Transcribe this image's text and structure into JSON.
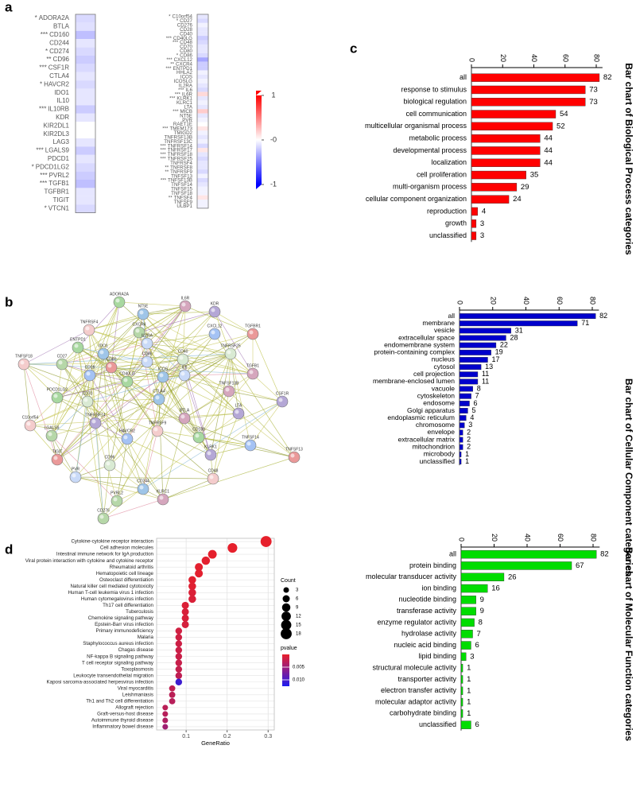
{
  "panel_labels": [
    "a",
    "b",
    "c",
    "d"
  ],
  "chart_data": [
    {
      "type": "heatmap",
      "columns": [
        {
          "genes": [
            "ADORA2A",
            "BTLA",
            "CD160",
            "CD244",
            "CD274",
            "CD96",
            "CSF1R",
            "CTLA4",
            "HAVCR2",
            "IDO1",
            "IL10",
            "IL10RB",
            "KDR",
            "KIR2DL1",
            "KIR2DL3",
            "LAG3",
            "LGALS9",
            "PDCD1",
            "PDCD1LG2",
            "PVRL2",
            "TGFB1",
            "TGFBR1",
            "TIGIT",
            "VTCN1"
          ],
          "stars": [
            "*",
            null,
            "***",
            null,
            "*",
            "**",
            "***",
            null,
            "*",
            null,
            null,
            "***",
            null,
            null,
            null,
            null,
            "***",
            null,
            "*",
            "***",
            "***",
            null,
            null,
            "*"
          ],
          "values": [
            -0.15,
            -0.12,
            -0.25,
            -0.1,
            -0.15,
            -0.2,
            -0.15,
            -0.1,
            -0.15,
            -0.1,
            -0.1,
            -0.2,
            -0.1,
            0,
            0,
            -0.1,
            -0.2,
            -0.1,
            -0.15,
            -0.2,
            -0.25,
            -0.1,
            -0.1,
            -0.15
          ]
        },
        {
          "genes": [
            "C10orf54",
            "CD27",
            "CD276",
            "CD28",
            "CD40",
            "CD40LG",
            "CD48",
            "CD70",
            "CD80",
            "CD86",
            "CXCL12",
            "CXCR4",
            "ENTPD1",
            "HHLA2",
            "ICOS",
            "ICOSLG",
            "IL2RA",
            "IL6",
            "IL6R",
            "KLRK1",
            "KLRC1",
            "LTA",
            "MICB",
            "NT5E",
            "PVR",
            "RAET1E",
            "TMEM173",
            "TMIGD2",
            "TNFRSF13B",
            "TNFRSF13C",
            "TNFRSF14",
            "TNFRSF17",
            "TNFRSF18",
            "TNFRSF25",
            "TNFRSF4",
            "TNFRSF8",
            "TNFRSF9",
            "TNFSF13",
            "TNFSF13B",
            "TNFSF14",
            "TNFSF15",
            "TNFSF18",
            "TNFSF4",
            "TNFSF9",
            "ULBP1"
          ],
          "stars": [
            "*",
            "*",
            null,
            null,
            null,
            "***",
            "***",
            null,
            null,
            "*",
            "***",
            "**",
            "***",
            null,
            null,
            null,
            null,
            "***",
            "***",
            "***",
            null,
            null,
            "***",
            null,
            null,
            null,
            "***",
            null,
            null,
            null,
            "***",
            "***",
            "***",
            "***",
            null,
            "**",
            "**",
            null,
            "***",
            null,
            null,
            null,
            "**",
            null,
            null
          ],
          "values": [
            -0.1,
            -0.15,
            -0.05,
            -0.1,
            -0.1,
            -0.2,
            -0.15,
            -0.1,
            -0.1,
            -0.15,
            -0.35,
            -0.2,
            -0.2,
            -0.05,
            -0.1,
            -0.05,
            -0.1,
            -0.15,
            0.15,
            -0.1,
            -0.05,
            -0.1,
            0.2,
            -0.1,
            -0.05,
            0,
            0.1,
            -0.05,
            -0.1,
            -0.05,
            -0.15,
            0.1,
            -0.1,
            -0.15,
            -0.1,
            -0.1,
            -0.15,
            -0.05,
            -0.15,
            -0.1,
            -0.05,
            -0.05,
            0.1,
            -0.05,
            -0.05
          ]
        }
      ],
      "colorbar": {
        "ylim": [
          -1,
          1
        ],
        "yticks": [
          1,
          {
            "value": 0,
            "label": "-0"
          },
          -1
        ]
      }
    },
    {
      "type": "network",
      "nodes": [
        "ADORA2A",
        "NT5E",
        "IL6R",
        "KDR",
        "TNFRSF4",
        "CXCR4",
        "CXCL12",
        "TGFBR1",
        "IL2RA",
        "TNFRSF25",
        "ENTPD1",
        "IDO1",
        "TGFB1",
        "CSF1R",
        "TNFSF18",
        "CD27",
        "CD28",
        "CD80",
        "CD86",
        "CD40",
        "CD40LG",
        "ICOS",
        "TNFSF13B",
        "LTA",
        "C10orf54",
        "LGALS9",
        "HAVCR2",
        "TIGIT",
        "PVR",
        "CD96",
        "CD160",
        "CD244",
        "KLRC1",
        "KLRK1",
        "CD48",
        "PVRL2",
        "TNFSF14",
        "TNFSF13",
        "IL6",
        "CD70",
        "PDCD1LG2",
        "CTLA4",
        "BTLA",
        "TNFRSF14",
        "TNFRSF9",
        "CD276"
      ]
    },
    {
      "type": "bar",
      "title": "Bar chart of Biological Process categories",
      "color": "#ff0000",
      "categories": [
        "all",
        "response to stimulus",
        "biological regulation",
        "cell communication",
        "multicellular organismal process",
        "metabolic process",
        "developmental process",
        "localization",
        "cell proliferation",
        "multi-organism process",
        "cellular component organization",
        "reproduction",
        "growth",
        "unclassified"
      ],
      "values": [
        82,
        73,
        73,
        54,
        52,
        44,
        44,
        44,
        35,
        29,
        24,
        4,
        3,
        3
      ],
      "xlim": [
        0,
        84
      ],
      "xticks": [
        0,
        20,
        40,
        60,
        80
      ]
    },
    {
      "type": "bar",
      "title": "Bar chart of Cellular Component categories",
      "color": "#0000cc",
      "categories": [
        "all",
        "membrane",
        "vesicle",
        "extracellular space",
        "endomembrane system",
        "protein-containing complex",
        "nucleus",
        "cytosol",
        "cell projection",
        "membrane-enclosed lumen",
        "vacuole",
        "cytoskeleton",
        "endosome",
        "Golgi apparatus",
        "endoplasmic reticulum",
        "chromosome",
        "envelope",
        "extracellular matrix",
        "mitochondrion",
        "microbody",
        "unclassified"
      ],
      "values": [
        82,
        71,
        31,
        28,
        22,
        19,
        17,
        13,
        11,
        11,
        8,
        7,
        6,
        5,
        4,
        3,
        2,
        2,
        2,
        1,
        1
      ],
      "xlim": [
        0,
        84
      ],
      "xticks": [
        0,
        20,
        40,
        60,
        80
      ]
    },
    {
      "type": "bar",
      "title": "Bar chart of Molecular Function categories",
      "color": "#00dd00",
      "categories": [
        "all",
        "protein binding",
        "molecular transducer activity",
        "ion binding",
        "nucleotide binding",
        "transferase activity",
        "enzyme regulator activity",
        "hydrolase activity",
        "nucleic acid binding",
        "lipid binding",
        "structural molecule activity",
        "transporter activity",
        "electron transfer activity",
        "molecular adaptor activity",
        "carbohydrate binding",
        "unclassified"
      ],
      "values": [
        82,
        67,
        26,
        16,
        9,
        9,
        8,
        7,
        6,
        3,
        1,
        1,
        1,
        1,
        1,
        6
      ],
      "xlim": [
        0,
        84
      ],
      "xticks": [
        0,
        20,
        40,
        60,
        80
      ]
    },
    {
      "type": "dotplot",
      "x_label": "GeneRatio",
      "categories": [
        "Cytokine-cytokine receptor interaction",
        "Cell adhesion molecules",
        "Intestinal immune network for IgA production",
        "Viral protein interaction with cytokine and cytokine receptor",
        "Rheumatoid arthritis",
        "Hematopoietic cell lineage",
        "Osteoclast differentiation",
        "Natural killer cell mediated cytotoxicity",
        "Human T-cell leukemia virus 1 infection",
        "Human cytomegalovirus infection",
        "Th17 cell differentiation",
        "Tuberculosis",
        "Chemokine signaling pathway",
        "Epstein-Barr virus infection",
        "Primary immunodeficiency",
        "Malaria",
        "Staphylococcus aureus infection",
        "Chagas disease",
        "NF-kappa B signaling pathway",
        "T cell receptor signaling pathway",
        "Toxoplasmosis",
        "Leukocyte transendothelial migration",
        "Kaposi sarcoma-associated herpesvirus infection",
        "Viral myocarditis",
        "Leishmaniasis",
        "Th1 and Th2 cell differentiation",
        "Allograft rejection",
        "Graft-versus-host disease",
        "Autoimmune thyroid disease",
        "Inflammatory bowel disease"
      ],
      "x": [
        0.295,
        0.213,
        0.164,
        0.148,
        0.131,
        0.131,
        0.115,
        0.115,
        0.115,
        0.115,
        0.098,
        0.098,
        0.098,
        0.098,
        0.082,
        0.082,
        0.082,
        0.082,
        0.082,
        0.082,
        0.082,
        0.082,
        0.082,
        0.066,
        0.066,
        0.066,
        0.049,
        0.049,
        0.049,
        0.049
      ],
      "counts": [
        18,
        13,
        10,
        9,
        8,
        8,
        7,
        7,
        7,
        7,
        6,
        6,
        6,
        6,
        5,
        5,
        5,
        5,
        5,
        5,
        5,
        5,
        5,
        4,
        4,
        4,
        3,
        3,
        3,
        3
      ],
      "pvalues": [
        0.0001,
        0.0001,
        0.0002,
        0.0003,
        0.0003,
        0.0003,
        0.0004,
        0.0005,
        0.0008,
        0.0009,
        0.0008,
        0.001,
        0.001,
        0.0012,
        0.0015,
        0.0016,
        0.0017,
        0.0018,
        0.0019,
        0.002,
        0.0022,
        0.0025,
        0.0105,
        0.0025,
        0.0028,
        0.003,
        0.0028,
        0.003,
        0.0035,
        0.0045
      ],
      "xlim": [
        0.028,
        0.315
      ],
      "xticks": [
        0.1,
        0.2,
        0.3
      ],
      "size_legend": {
        "title": "Count",
        "values": [
          3,
          6,
          9,
          12,
          15,
          18
        ]
      },
      "color_legend": {
        "title": "pvalue",
        "lim": [
          0,
          0.0125
        ],
        "ticks": [
          0.005,
          {
            "value": 0.01,
            "label": "0.010"
          }
        ]
      }
    }
  ]
}
